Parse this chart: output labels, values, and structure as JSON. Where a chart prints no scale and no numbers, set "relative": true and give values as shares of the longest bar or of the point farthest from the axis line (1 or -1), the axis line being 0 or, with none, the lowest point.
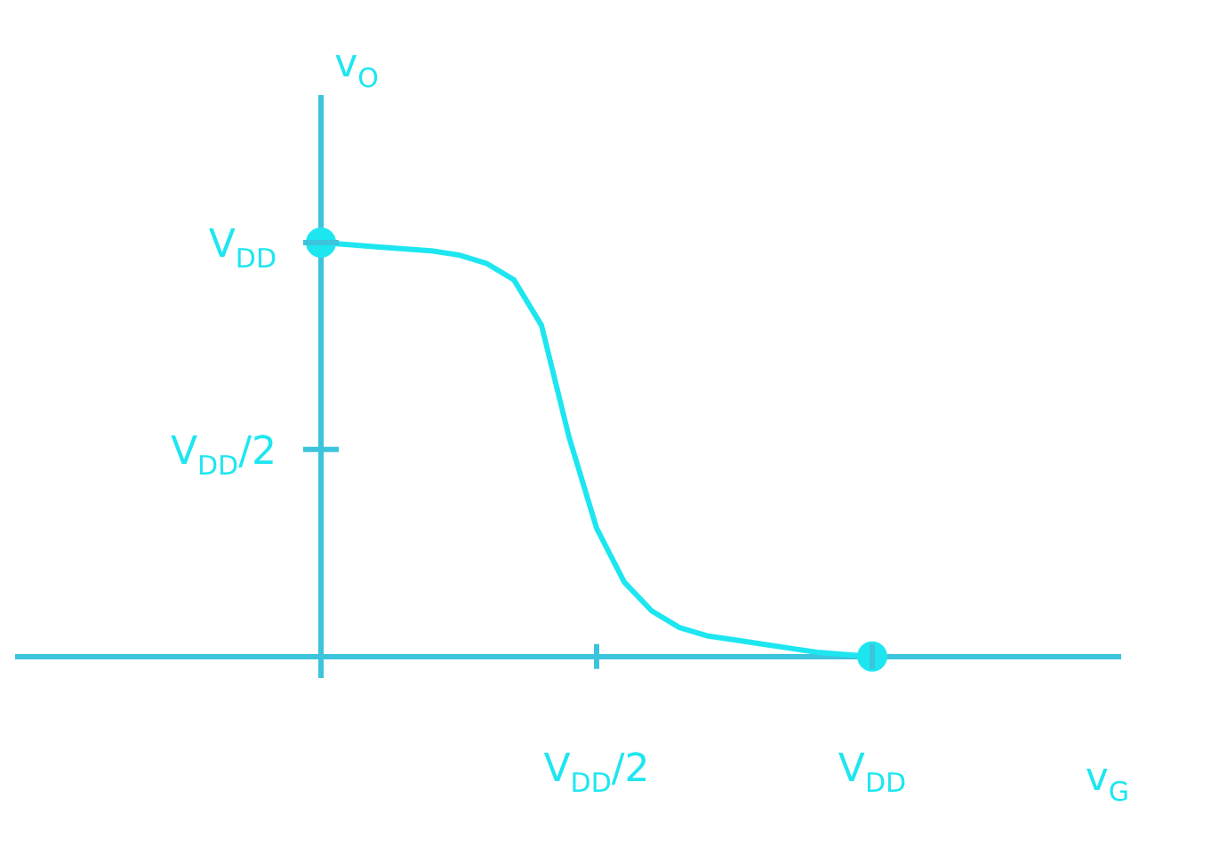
{
  "chart_data": {
    "type": "line",
    "relative": true,
    "xlabel": "v$_{G}$",
    "ylabel": "v$_{O}$",
    "categories": [
      null,
      null,
      null,
      null,
      null,
      null,
      null,
      null,
      null,
      null,
      null,
      null,
      null,
      null,
      null,
      null,
      null,
      null,
      null,
      null,
      null,
      "V$_{DD}$/2",
      null,
      null,
      null,
      null,
      null,
      null,
      null,
      null,
      null,
      "V$_{DD}$",
      null,
      null,
      null,
      null,
      null,
      null,
      null,
      null,
      null
    ],
    "annotations": [
      "V$_{DD}$",
      "V$_{DD}$/2"
    ],
    "legend": false,
    "series": [
      {
        "color": "#1ee6f0",
        "marker": "none",
        "line_style": "solid",
        "values": [
          null,
          null,
          null,
          null,
          null,
          null,
          null,
          null,
          null,
          null,
          null,
          1,
          0.995,
          0.99,
          0.985,
          0.98,
          0.97,
          0.95,
          0.91,
          0.8,
          0.53,
          0.31,
          0.18,
          0.11,
          0.07,
          0.05,
          0.04,
          0.03,
          0.02,
          0.01,
          0.005,
          0,
          null,
          null,
          null,
          null,
          null,
          null,
          null,
          null,
          null
        ]
      },
      {
        "type": "scatter",
        "color": "#1ee6f0",
        "marker": "circle",
        "values": [
          null,
          null,
          null,
          null,
          null,
          null,
          null,
          null,
          null,
          null,
          null,
          1,
          null,
          null,
          null,
          null,
          null,
          null,
          null,
          null,
          null,
          null,
          null,
          null,
          null,
          null,
          null,
          null,
          null,
          null,
          null,
          0,
          null,
          null,
          null,
          null,
          null,
          null,
          null,
          null,
          null
        ]
      }
    ]
  }
}
